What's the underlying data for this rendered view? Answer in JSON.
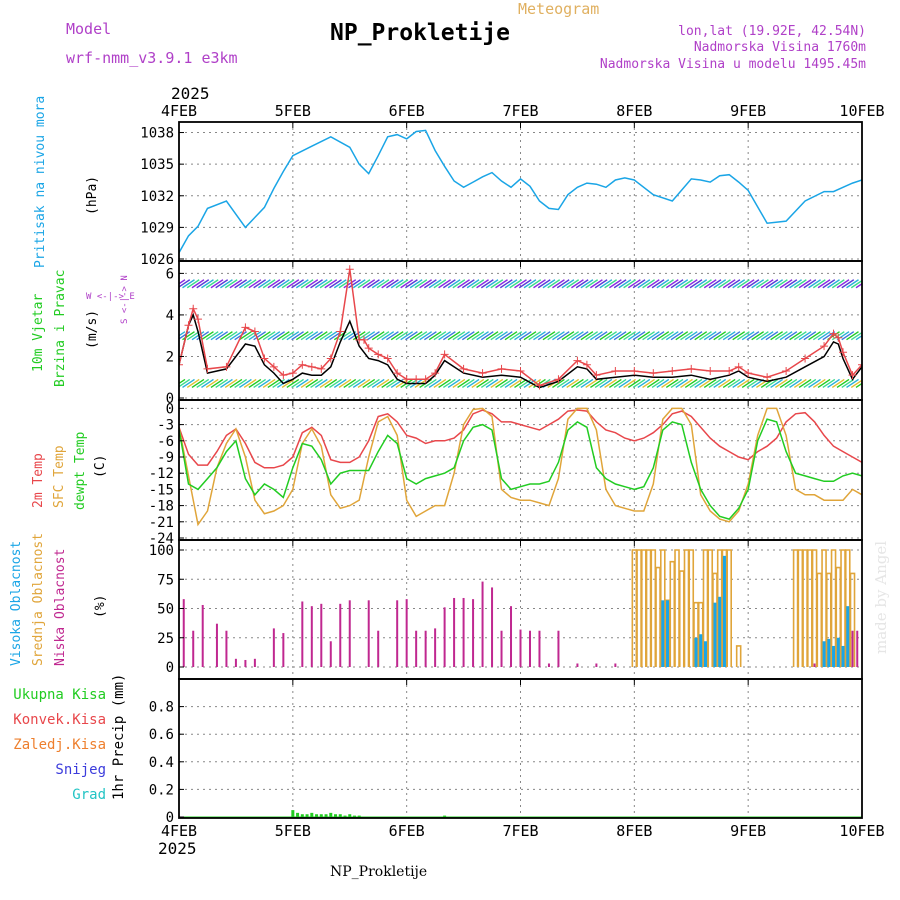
{
  "header": {
    "model_label": "Model",
    "model_name": "wrf-nmm_v3.9.1 e3km",
    "meteogram": "Meteogram",
    "title": "NP_Prokletije",
    "lonlat": "lon,lat (19.92E, 42.54N)",
    "altitude": "Nadmorska Visina 1760m",
    "model_altitude": "Nadmorska Visina u modelu 1495.45m",
    "footer_title": "NP_Prokletije",
    "watermark": "made by Angel"
  },
  "colors": {
    "pressure": "#1aa5e6",
    "wind_black": "#000000",
    "gust": "#e8474b",
    "temp2m": "#e8474b",
    "sfctemp": "#e0a53a",
    "dewpt": "#22cc22",
    "high_cloud": "#1aa5e6",
    "mid_cloud": "#e0a53a",
    "low_cloud": "#c02890",
    "total_precip": "#22cc22",
    "conv_precip": "#e8474b",
    "frozen_precip": "#ee7f2d",
    "snow": "#3c3cdc",
    "graupel": "#22c4c4",
    "purple": "#b040c8",
    "grid": "#888888"
  },
  "time_axis": {
    "year": "2025",
    "tick_labels": [
      "4FEB",
      "5FEB",
      "6FEB",
      "7FEB",
      "8FEB",
      "9FEB",
      "10FEB"
    ]
  },
  "side_labels": {
    "pressure": "Pritisak na nivou mora",
    "pressure_unit": "(hPa)",
    "wind1": "10m Vjetar",
    "wind2": "Brzina i Pravac",
    "wind_unit": "(m/s)",
    "wind_compass": "W <-|-> E",
    "wind_compass2": "S <-|-> N",
    "temp_2m": "2m Temp",
    "temp_sfc": "SFC Temp",
    "temp_dew": "dewpt Temp",
    "temp_unit": "(C)",
    "cloud_high": "Visoka Oblacnost",
    "cloud_mid": "Srednja Oblacnost",
    "cloud_low": "Niska Oblacnost",
    "cloud_unit": "(%)",
    "precip_total": "Ukupna Kisa",
    "precip_conv": "Konvek.Kisa",
    "precip_frozen": "Zaledj.Kisa",
    "precip_snow": "Snijeg",
    "precip_grad": "Grad",
    "precip_unit": "1hr Precip (mm)"
  },
  "chart_data": [
    {
      "type": "line",
      "name": "pressure",
      "ylabel": "(hPa)",
      "ylim": [
        1026,
        1039
      ],
      "yticks": [
        1026,
        1029,
        1032,
        1035,
        1038
      ],
      "x": [
        0,
        2,
        4,
        6,
        10,
        14,
        18,
        20,
        22,
        24,
        28,
        32,
        36,
        38,
        40,
        42,
        44,
        46,
        48,
        50,
        52,
        54,
        56,
        58,
        60,
        62,
        64,
        66,
        68,
        70,
        72,
        74,
        76,
        78,
        80,
        82,
        84,
        86,
        88,
        90,
        92,
        94,
        96,
        100,
        104,
        108,
        110,
        112,
        114,
        116,
        118,
        120,
        124,
        128,
        132,
        136,
        138,
        140,
        142,
        144
      ],
      "series": [
        {
          "name": "Pritisak",
          "values": [
            1026.6,
            1028.2,
            1029.1,
            1030.8,
            1031.5,
            1029.0,
            1030.9,
            1032.7,
            1034.3,
            1035.8,
            1036.7,
            1037.6,
            1036.6,
            1035.0,
            1034.1,
            1035.8,
            1037.6,
            1037.8,
            1037.4,
            1038.1,
            1038.2,
            1036.3,
            1034.8,
            1033.4,
            1032.8,
            1033.3,
            1033.8,
            1034.2,
            1033.4,
            1032.8,
            1033.6,
            1032.9,
            1031.5,
            1030.8,
            1030.7,
            1032.1,
            1032.8,
            1033.2,
            1033.1,
            1032.8,
            1033.5,
            1033.7,
            1033.5,
            1032.1,
            1031.5,
            1033.6,
            1033.5,
            1033.3,
            1033.9,
            1034.0,
            1033.3,
            1032.5,
            1029.4,
            1029.6,
            1031.5,
            1032.4,
            1032.4,
            1032.8,
            1033.2,
            1033.5
          ]
        }
      ]
    },
    {
      "type": "line",
      "name": "wind",
      "ylabel": "(m/s)",
      "ylim": [
        0,
        6.5
      ],
      "yticks": [
        0,
        2,
        4,
        6
      ],
      "x": [
        0,
        2,
        3,
        4,
        6,
        10,
        14,
        16,
        18,
        20,
        22,
        24,
        26,
        28,
        30,
        32,
        34,
        36,
        38,
        39,
        40,
        42,
        44,
        46,
        48,
        50,
        52,
        54,
        56,
        60,
        64,
        68,
        72,
        76,
        80,
        84,
        86,
        88,
        92,
        96,
        100,
        104,
        108,
        112,
        116,
        118,
        120,
        124,
        128,
        132,
        136,
        138,
        139,
        140,
        142,
        144
      ],
      "series": [
        {
          "name": "10m wind",
          "values": [
            1.6,
            3.5,
            4.0,
            3.2,
            1.2,
            1.4,
            2.6,
            2.5,
            1.6,
            1.2,
            0.7,
            0.9,
            1.2,
            1.1,
            1.1,
            1.5,
            2.7,
            3.7,
            2.5,
            2.2,
            1.9,
            1.8,
            1.6,
            0.9,
            0.7,
            0.7,
            0.7,
            1.1,
            1.8,
            1.2,
            1.0,
            1.1,
            1.0,
            0.5,
            0.8,
            1.5,
            1.4,
            0.9,
            1.0,
            1.1,
            1.0,
            1.0,
            1.1,
            0.9,
            1.1,
            1.3,
            1.0,
            0.8,
            1.0,
            1.5,
            2.0,
            2.7,
            2.6,
            1.9,
            0.9,
            1.5
          ]
        },
        {
          "name": "gust",
          "values": [
            1.6,
            3.5,
            4.3,
            3.8,
            1.4,
            1.5,
            3.4,
            3.2,
            1.9,
            1.5,
            1.1,
            1.2,
            1.6,
            1.5,
            1.4,
            1.9,
            3.2,
            6.2,
            2.8,
            2.8,
            2.4,
            2.1,
            1.9,
            1.2,
            0.9,
            0.9,
            0.9,
            1.2,
            2.1,
            1.4,
            1.2,
            1.4,
            1.3,
            0.6,
            0.9,
            1.8,
            1.6,
            1.1,
            1.3,
            1.3,
            1.2,
            1.3,
            1.4,
            1.3,
            1.3,
            1.5,
            1.2,
            1.0,
            1.3,
            1.9,
            2.5,
            3.1,
            2.9,
            2.2,
            1.1,
            1.6
          ]
        }
      ],
      "barb_rows_ms": [
        5.5,
        3.0,
        0.7
      ]
    },
    {
      "type": "line",
      "name": "temperature",
      "ylabel": "(C)",
      "ylim": [
        -24,
        1
      ],
      "yticks": [
        -24,
        -21,
        -18,
        -15,
        -12,
        -9,
        -6,
        -3,
        0
      ],
      "x": [
        0,
        2,
        4,
        6,
        8,
        10,
        12,
        14,
        16,
        18,
        20,
        22,
        24,
        26,
        28,
        30,
        32,
        34,
        36,
        38,
        40,
        42,
        44,
        46,
        48,
        50,
        52,
        54,
        56,
        58,
        60,
        62,
        64,
        66,
        68,
        70,
        72,
        74,
        76,
        78,
        80,
        82,
        84,
        86,
        88,
        90,
        92,
        94,
        96,
        98,
        100,
        102,
        104,
        106,
        108,
        110,
        112,
        114,
        116,
        118,
        120,
        122,
        124,
        126,
        128,
        130,
        132,
        134,
        136,
        138,
        140,
        142,
        144
      ],
      "series": [
        {
          "name": "2m Temp",
          "values": [
            -3.5,
            -8.5,
            -10.5,
            -10.5,
            -8.0,
            -5.0,
            -3.8,
            -6.5,
            -10.0,
            -11.0,
            -11.0,
            -10.5,
            -9.0,
            -4.5,
            -3.5,
            -5.0,
            -9.5,
            -10.0,
            -10.0,
            -9.0,
            -6.0,
            -1.5,
            -1.0,
            -2.5,
            -5.0,
            -5.5,
            -6.5,
            -6.0,
            -6.0,
            -5.5,
            -4.0,
            -1.0,
            -0.3,
            -1.0,
            -2.5,
            -2.5,
            -3.0,
            -3.5,
            -4.0,
            -3.0,
            -2.0,
            -0.5,
            -0.3,
            -0.5,
            -2.5,
            -4.0,
            -4.5,
            -5.5,
            -6.0,
            -5.5,
            -4.5,
            -3.0,
            -1.0,
            -0.5,
            -1.5,
            -3.5,
            -5.5,
            -7.0,
            -8.0,
            -9.0,
            -9.5,
            -8.0,
            -7.0,
            -5.5,
            -2.5,
            -1.0,
            -0.8,
            -2.5,
            -5.0,
            -7.0,
            -8.0,
            -9.0,
            -10.0
          ]
        },
        {
          "name": "SFC Temp",
          "values": [
            -3.5,
            -12.5,
            -21.5,
            -19.0,
            -11.0,
            -6.5,
            -3.8,
            -9.0,
            -17.0,
            -19.5,
            -19.0,
            -18.0,
            -15.0,
            -6.5,
            -3.8,
            -7.0,
            -16.0,
            -18.5,
            -18.0,
            -17.0,
            -9.0,
            -2.5,
            -1.5,
            -5.0,
            -17.0,
            -20.0,
            -19.0,
            -18.0,
            -18.0,
            -12.0,
            -3.0,
            -0.2,
            0.0,
            -1.5,
            -15.0,
            -16.5,
            -17.0,
            -17.0,
            -17.5,
            -18.0,
            -13.0,
            -2.0,
            0.0,
            0.0,
            -4.0,
            -15.0,
            -18.0,
            -18.5,
            -19.0,
            -19.0,
            -14.0,
            -2.0,
            0.0,
            0.0,
            -3.0,
            -16.0,
            -19.0,
            -20.5,
            -21.0,
            -19.0,
            -14.0,
            -5.0,
            0.0,
            0.0,
            -5.0,
            -15.0,
            -16.0,
            -16.0,
            -17.0,
            -17.0,
            -17.0,
            -15.0,
            -16.0
          ]
        },
        {
          "name": "dewpt Temp",
          "values": [
            -3.8,
            -14.0,
            -15.0,
            -13.0,
            -11.0,
            -8.0,
            -6.0,
            -13.0,
            -16.0,
            -14.0,
            -15.0,
            -16.5,
            -11.0,
            -6.5,
            -7.0,
            -9.5,
            -14.0,
            -12.0,
            -11.5,
            -11.5,
            -11.5,
            -8.0,
            -5.0,
            -6.5,
            -13.0,
            -14.0,
            -13.0,
            -12.5,
            -12.0,
            -11.0,
            -6.0,
            -3.5,
            -3.0,
            -4.0,
            -13.0,
            -15.0,
            -14.5,
            -14.0,
            -14.0,
            -13.5,
            -10.0,
            -4.0,
            -2.5,
            -3.5,
            -11.0,
            -13.0,
            -14.0,
            -14.5,
            -15.0,
            -14.5,
            -11.0,
            -4.0,
            -2.5,
            -3.0,
            -10.0,
            -15.0,
            -18.0,
            -20.0,
            -20.5,
            -18.5,
            -15.0,
            -6.0,
            -2.0,
            -2.5,
            -8.0,
            -12.0,
            -12.5,
            -13.0,
            -13.5,
            -13.5,
            -12.5,
            -12.0,
            -12.5
          ]
        }
      ]
    },
    {
      "type": "bar",
      "name": "clouds",
      "ylabel": "(%)",
      "ylim": [
        0,
        100
      ],
      "yticks": [
        0,
        25,
        50,
        75,
        100
      ],
      "series": [
        {
          "name": "Niska Oblacnost",
          "x": [
            1,
            3,
            5,
            8,
            10,
            12,
            14,
            16,
            20,
            22,
            26,
            28,
            30,
            32,
            34,
            36,
            40,
            42,
            46,
            48,
            50,
            52,
            54,
            56,
            58,
            60,
            62,
            64,
            66,
            68,
            70,
            72,
            74,
            76,
            78,
            80,
            84,
            88,
            92,
            134,
            142,
            143
          ],
          "values": [
            58,
            31,
            53,
            37,
            31,
            7,
            6,
            7,
            33,
            29,
            56,
            52,
            54,
            22,
            54,
            57,
            57,
            31,
            57,
            58,
            31,
            31,
            33,
            51,
            59,
            59,
            58,
            73,
            68,
            31,
            52,
            32,
            31,
            31,
            3,
            31,
            3,
            3,
            3,
            3,
            31,
            31
          ]
        },
        {
          "name": "Srednja Oblacnost",
          "x": [
            96,
            97,
            98,
            99,
            100,
            101,
            102,
            103,
            104,
            105,
            106,
            107,
            108,
            109,
            110,
            111,
            112,
            113,
            114,
            115,
            116,
            118,
            130,
            131,
            132,
            133,
            134,
            135,
            136,
            137,
            138,
            139,
            140,
            141,
            142
          ],
          "values": [
            100,
            100,
            100,
            100,
            100,
            85,
            100,
            57,
            90,
            100,
            82,
            100,
            100,
            55,
            55,
            100,
            100,
            80,
            100,
            100,
            100,
            18,
            100,
            100,
            100,
            100,
            100,
            80,
            100,
            80,
            100,
            85,
            100,
            100,
            80
          ]
        },
        {
          "name": "Visoka Oblacnost",
          "x": [
            102,
            103,
            109,
            110,
            111,
            113,
            114,
            115,
            136,
            137,
            138,
            139,
            140,
            141
          ],
          "values": [
            57,
            57,
            25,
            28,
            22,
            55,
            60,
            95,
            22,
            24,
            18,
            25,
            18,
            52
          ]
        }
      ]
    },
    {
      "type": "bar",
      "name": "precipitation",
      "ylabel": "1hr Precip (mm)",
      "ylim": [
        0,
        1.0
      ],
      "yticks": [
        0,
        0.2,
        0.4,
        0.6,
        0.8
      ],
      "series": [
        {
          "name": "Ukupna Kisa",
          "x": [
            24,
            25,
            26,
            27,
            28,
            29,
            30,
            31,
            32,
            33,
            34,
            35,
            36,
            37,
            38,
            56
          ],
          "values": [
            0.05,
            0.03,
            0.02,
            0.02,
            0.03,
            0.02,
            0.02,
            0.02,
            0.03,
            0.02,
            0.02,
            0.01,
            0.02,
            0.01,
            0.01,
            0.01
          ]
        }
      ]
    }
  ]
}
